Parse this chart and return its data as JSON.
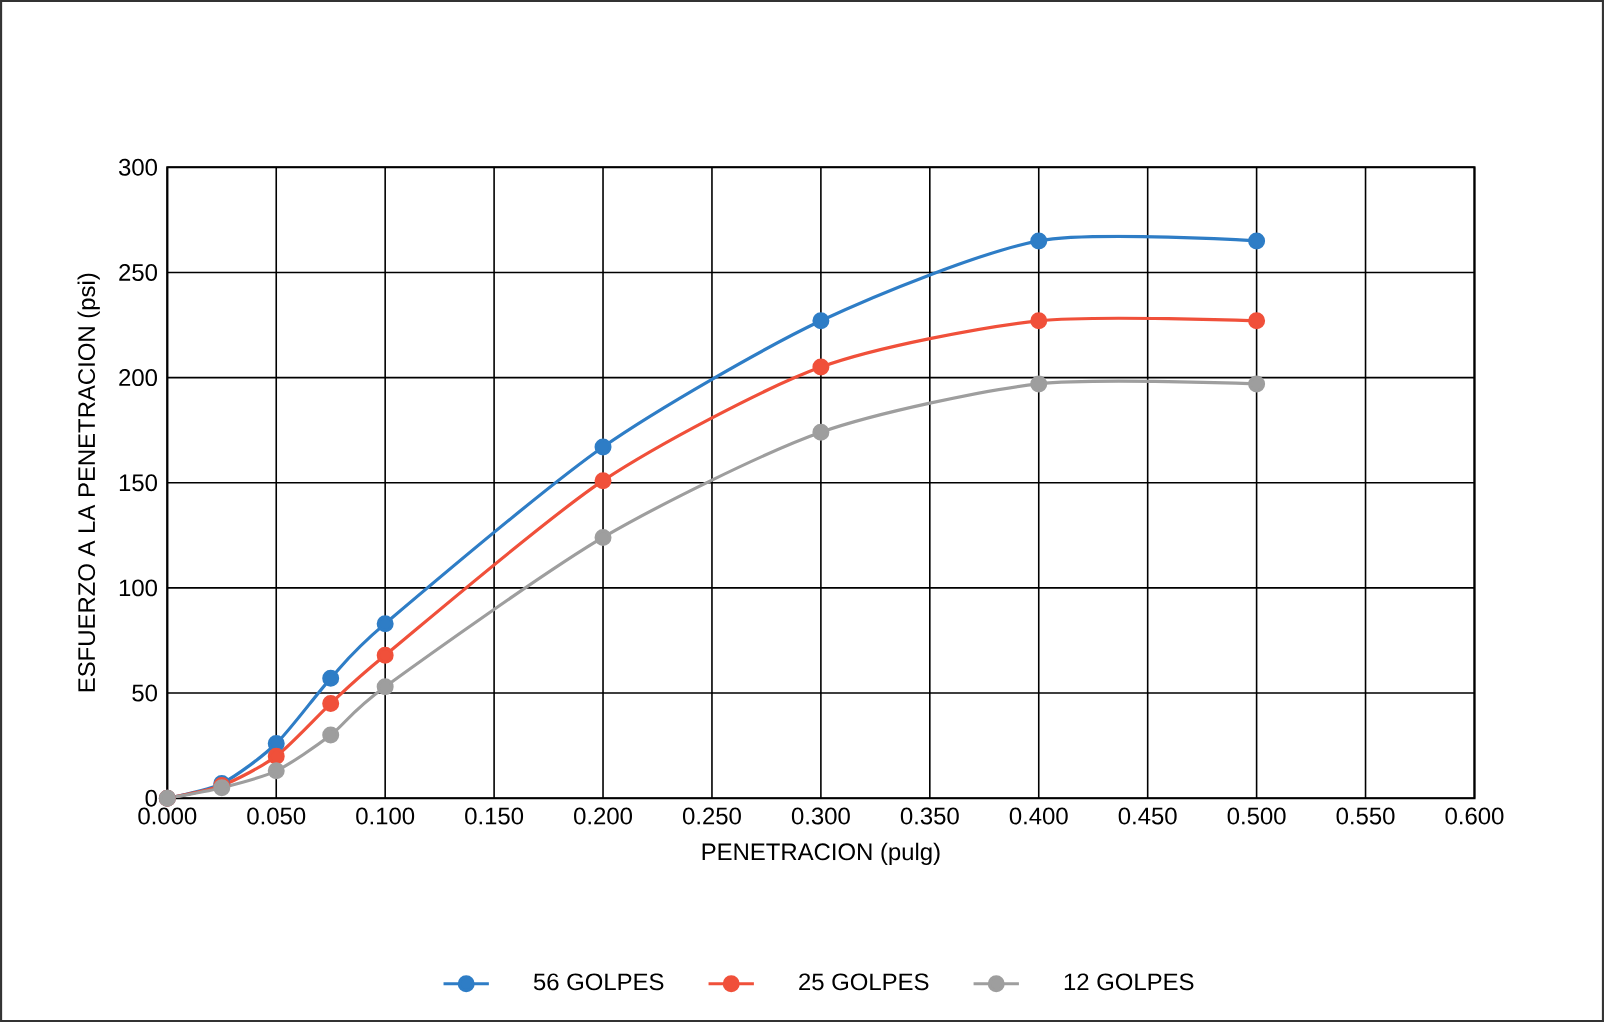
{
  "chart_data": {
    "type": "line",
    "xlabel": "PENETRACION (pulg)",
    "ylabel": "ESFUERZO A LA PENETRACION (psi)",
    "x": [
      0,
      0.025,
      0.05,
      0.075,
      0.1,
      0.2,
      0.3,
      0.4,
      0.5
    ],
    "xlim": [
      0,
      0.6
    ],
    "xticks": [
      {
        "value": 0,
        "label": "0.000"
      },
      {
        "value": 0.05,
        "label": "0.050"
      },
      {
        "value": 0.1,
        "label": "0.100"
      },
      {
        "value": 0.15,
        "label": "0.150"
      },
      {
        "value": 0.2,
        "label": "0.200"
      },
      {
        "value": 0.25,
        "label": "0.250"
      },
      {
        "value": 0.3,
        "label": "0.300"
      },
      {
        "value": 0.35,
        "label": "0.350"
      },
      {
        "value": 0.4,
        "label": "0.400"
      },
      {
        "value": 0.45,
        "label": "0.450"
      },
      {
        "value": 0.5,
        "label": "0.500"
      },
      {
        "value": 0.55,
        "label": "0.550"
      },
      {
        "value": 0.6,
        "label": "0.600"
      }
    ],
    "ylim": [
      0,
      300
    ],
    "yticks": [
      0,
      50,
      100,
      150,
      200,
      250,
      300
    ],
    "grid": true,
    "legend": "bottom",
    "marker": "circle",
    "line_style": "solid",
    "series": [
      {
        "name": "56 GOLPES",
        "color": "#2e7dc6",
        "values": [
          0,
          7,
          26,
          57,
          83,
          167,
          227,
          265,
          265
        ]
      },
      {
        "name": "25 GOLPES",
        "color": "#f0503a",
        "values": [
          0,
          6,
          20,
          45,
          68,
          151,
          205,
          227,
          227
        ]
      },
      {
        "name": "12 GOLPES",
        "color": "#9e9e9e",
        "values": [
          0,
          5,
          13,
          30,
          53,
          124,
          174,
          197,
          197
        ]
      }
    ]
  }
}
